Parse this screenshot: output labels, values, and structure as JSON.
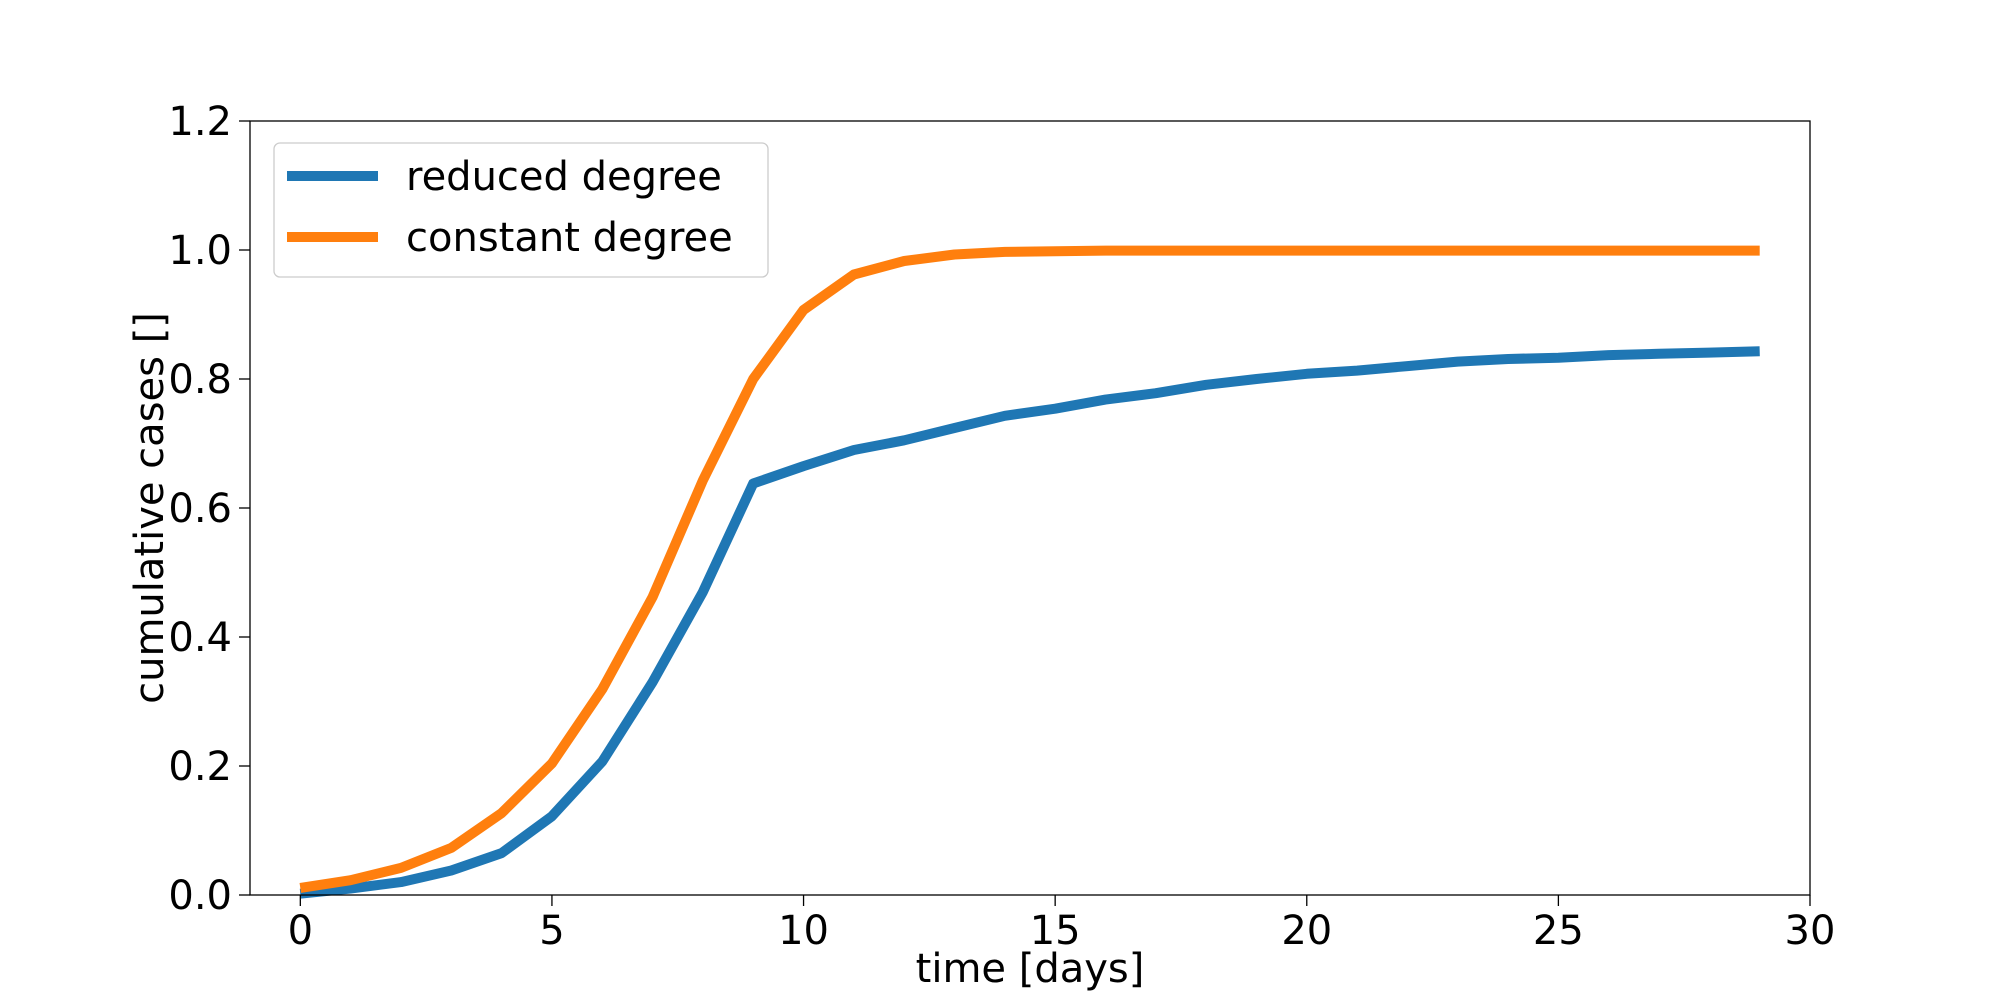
{
  "chart_data": {
    "type": "line",
    "title": "",
    "xlabel": "time [days]",
    "ylabel": "cumulative cases []",
    "xlim": [
      -1,
      30
    ],
    "ylim": [
      0,
      1.2
    ],
    "xticks": [
      0,
      5,
      10,
      15,
      20,
      25,
      30
    ],
    "xtick_labels": [
      "0",
      "5",
      "10",
      "15",
      "20",
      "25",
      "30"
    ],
    "yticks": [
      0,
      0.2,
      0.4,
      0.6,
      0.8,
      1.0,
      1.2
    ],
    "ytick_labels": [
      "0.0",
      "0.2",
      "0.4",
      "0.6",
      "0.8",
      "1.0",
      "1.2"
    ],
    "grid": false,
    "legend_position": "top-left",
    "x": [
      0,
      1,
      2,
      3,
      4,
      5,
      6,
      7,
      8,
      9,
      10,
      11,
      12,
      13,
      14,
      15,
      16,
      17,
      18,
      19,
      20,
      21,
      22,
      23,
      24,
      25,
      26,
      27,
      28,
      29
    ],
    "series": [
      {
        "name": "reduced degree",
        "color": "#1f77b4",
        "values": [
          0.002,
          0.01,
          0.02,
          0.038,
          0.065,
          0.122,
          0.207,
          0.33,
          0.47,
          0.638,
          0.665,
          0.69,
          0.705,
          0.724,
          0.743,
          0.754,
          0.768,
          0.778,
          0.791,
          0.8,
          0.808,
          0.813,
          0.82,
          0.827,
          0.831,
          0.833,
          0.837,
          0.839,
          0.841,
          0.843
        ]
      },
      {
        "name": "constant degree",
        "color": "#ff7f0e",
        "values": [
          0.011,
          0.023,
          0.042,
          0.073,
          0.127,
          0.204,
          0.319,
          0.462,
          0.643,
          0.8,
          0.907,
          0.962,
          0.983,
          0.993,
          0.997,
          0.998,
          0.999,
          0.999,
          0.999,
          0.999,
          0.999,
          0.999,
          0.999,
          0.999,
          0.999,
          0.999,
          0.999,
          0.999,
          0.999,
          0.999
        ]
      }
    ]
  }
}
